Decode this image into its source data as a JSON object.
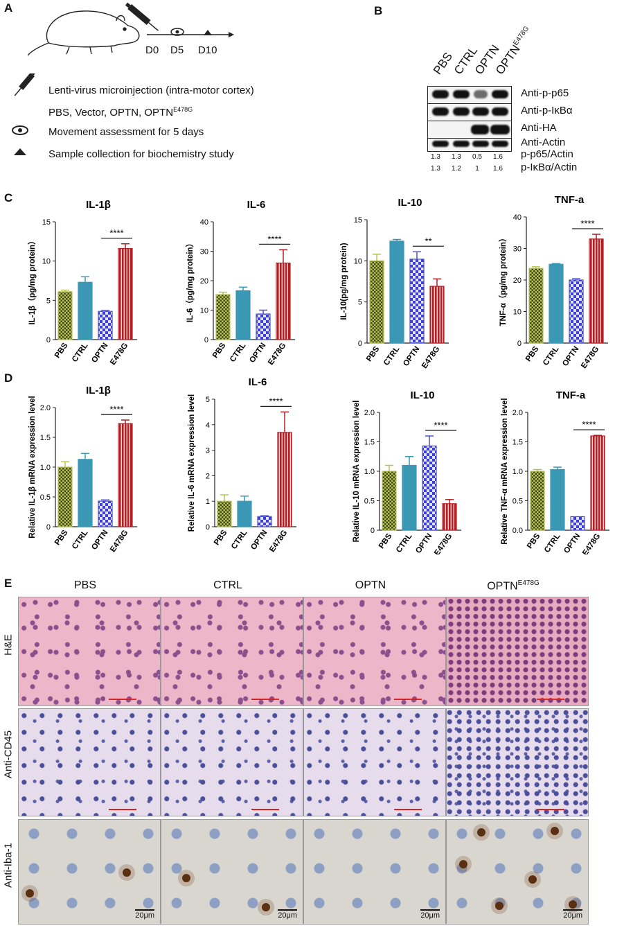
{
  "panel_letters": {
    "a": "A",
    "b": "B",
    "c": "C",
    "d": "D",
    "e": "E"
  },
  "panel_a": {
    "timeline_labels": [
      "D0",
      "D5",
      "D10"
    ],
    "legend": {
      "injection": "Lenti-virus microinjection (intra-motor cortex)",
      "groups_prefix": "PBS,  Vector,  OPTN,  OPTN",
      "groups_superscript": "E478G",
      "movement": "Movement assessment for 5 days",
      "sample": "Sample collection for biochemistry study"
    },
    "icons": [
      "mouse-icon",
      "syringe-icon",
      "eye-icon",
      "triangle-icon"
    ]
  },
  "panel_b": {
    "lanes": [
      "PBS",
      "CTRL",
      "OPTN",
      "OPTN"
    ],
    "last_lane_superscript": "E478G",
    "blot_labels": [
      "Anti-p-p65",
      "Anti-p-IκBα",
      "Anti-HA",
      "Anti-Actin"
    ],
    "ratio_labels": [
      "p-p65/Actin",
      "p-IκBα/Actin"
    ],
    "ratios_p65": [
      "1.3",
      "1.3",
      "0.5",
      "1.6"
    ],
    "ratios_ikba": [
      "1.3",
      "1.2",
      "1",
      "1.6"
    ]
  },
  "chart_data": [
    {
      "panel": "C",
      "type": "bar",
      "title": "IL-1β",
      "ylabel": "IL-1β（pg/mg protein）",
      "categories": [
        "PBS",
        "CTRL",
        "OPTN",
        "E478G"
      ],
      "values": [
        6.1,
        7.3,
        3.6,
        11.6
      ],
      "errors": [
        0.2,
        0.7,
        0.1,
        0.6
      ],
      "ylim": [
        0,
        15
      ],
      "yticks": [
        "0",
        "5",
        "10",
        "15"
      ],
      "significance": "****",
      "sig_between": [
        2,
        3
      ]
    },
    {
      "panel": "C",
      "type": "bar",
      "title": "IL-6",
      "ylabel": "IL-6（pg/mg protein）",
      "categories": [
        "PBS",
        "CTRL",
        "OPTN",
        "E478G"
      ],
      "values": [
        15.3,
        16.6,
        8.7,
        26.0
      ],
      "errors": [
        0.8,
        1.2,
        1.3,
        4.5
      ],
      "ylim": [
        0,
        40
      ],
      "yticks": [
        "0",
        "10",
        "20",
        "30",
        "40"
      ],
      "significance": "****",
      "sig_between": [
        2,
        3
      ]
    },
    {
      "panel": "C",
      "type": "bar",
      "title": "IL-10",
      "ylabel": "IL-10(pg/mg protein)",
      "categories": [
        "PBS",
        "CTRL",
        "OPTN",
        "E478G"
      ],
      "values": [
        10.0,
        12.4,
        10.2,
        6.9
      ],
      "errors": [
        0.8,
        0.2,
        0.9,
        0.9
      ],
      "ylim": [
        0,
        15
      ],
      "yticks": [
        "0",
        "5",
        "10",
        "15"
      ],
      "significance": "**",
      "sig_between": [
        2,
        3
      ]
    },
    {
      "panel": "C",
      "type": "bar",
      "title": "TNF-a",
      "ylabel": "TNF-α（pg/mg protein）",
      "categories": [
        "PBS",
        "CTRL",
        "OPTN",
        "E478G"
      ],
      "values": [
        23.7,
        25.0,
        20.0,
        33.0
      ],
      "errors": [
        0.5,
        0.2,
        0.4,
        1.5
      ],
      "ylim": [
        0,
        40
      ],
      "yticks": [
        "0",
        "10",
        "20",
        "30",
        "40"
      ],
      "significance": "****",
      "sig_between": [
        2,
        3
      ]
    },
    {
      "panel": "D",
      "type": "bar",
      "title": "IL-1β",
      "ylabel": "Relative IL-1β mRNA expression level",
      "categories": [
        "PBS",
        "CTRL",
        "OPTN",
        "E478G"
      ],
      "values": [
        1.0,
        1.13,
        0.43,
        1.73
      ],
      "errors": [
        0.09,
        0.1,
        0.02,
        0.06
      ],
      "ylim": [
        0,
        2.0
      ],
      "yticks": [
        "0",
        "0.5",
        "1.0",
        "1.5",
        "2.0"
      ],
      "significance": "****",
      "sig_between": [
        2,
        3
      ]
    },
    {
      "panel": "D",
      "type": "bar",
      "title": "IL-6",
      "ylabel": "Relative IL-6 mRNA expression level",
      "categories": [
        "PBS",
        "CTRL",
        "OPTN",
        "E478G"
      ],
      "values": [
        1.0,
        1.0,
        0.4,
        3.7
      ],
      "errors": [
        0.25,
        0.2,
        0.03,
        0.8
      ],
      "ylim": [
        0,
        5
      ],
      "yticks": [
        "0",
        "1",
        "2",
        "3",
        "4",
        "5"
      ],
      "significance": "****",
      "sig_between": [
        2,
        3
      ]
    },
    {
      "panel": "D",
      "type": "bar",
      "title": "IL-10",
      "ylabel": "Relative IL-10 mRNA expression level",
      "categories": [
        "PBS",
        "CTRL",
        "OPTN",
        "E478G"
      ],
      "values": [
        1.0,
        1.1,
        1.43,
        0.45
      ],
      "errors": [
        0.1,
        0.15,
        0.17,
        0.07
      ],
      "ylim": [
        0,
        2.0
      ],
      "yticks": [
        "0",
        "0.5",
        "1.0",
        "1.5",
        "2.0"
      ],
      "significance": "****",
      "sig_between": [
        2,
        3
      ]
    },
    {
      "panel": "D",
      "type": "bar",
      "title": "TNF-a",
      "ylabel": "Relative TNF-α mRNA expression level",
      "categories": [
        "PBS",
        "CTRL",
        "OPTN",
        "E478G"
      ],
      "values": [
        1.0,
        1.03,
        0.23,
        1.6
      ],
      "errors": [
        0.03,
        0.04,
        0.0,
        0.01
      ],
      "ylim": [
        0,
        2.0
      ],
      "yticks": [
        "0.0",
        "0.5",
        "1.0",
        "1.5",
        "2.0"
      ],
      "significance": "****",
      "sig_between": [
        2,
        3
      ]
    }
  ],
  "bar_colors": [
    "#b9c25a",
    "#3b98b4",
    "#4b4fd6",
    "#b01f24"
  ],
  "panel_e": {
    "columns": [
      "PBS",
      "CTRL",
      "OPTN",
      "OPTN"
    ],
    "last_column_superscript": "E478G",
    "rows": [
      "H&E",
      "Anti-CD45",
      "Anti-Iba-1"
    ],
    "scale_label": "20μm"
  }
}
